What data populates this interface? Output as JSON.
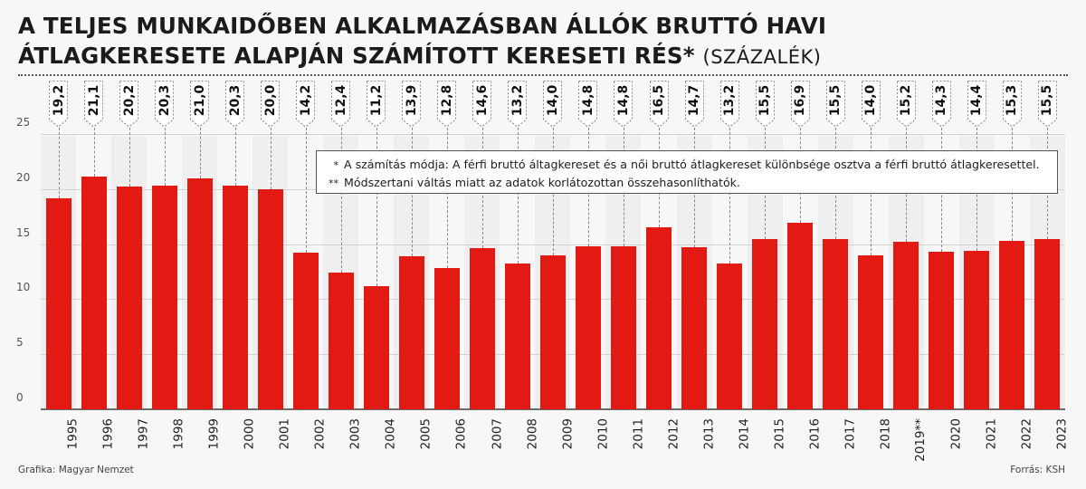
{
  "title": {
    "line1": "A TELJES MUNKAIDŐBEN ALKALMAZÁSBAN ÁLLÓK BRUTTÓ HAVI",
    "line2": "ÁTLAGKERESETE ALAPJÁN SZÁMÍTOTT KERESETI RÉS*",
    "unit": "(SZÁZALÉK)"
  },
  "notes": [
    {
      "marker": "*",
      "text": "A számítás módja: A férfi bruttó áltagkereset és a női bruttó átlagkereset különbsége osztva a férfi bruttó átlagkeresettel."
    },
    {
      "marker": "**",
      "text": "Módszertani váltás miatt az adatok korlátozottan összehasonlíthatók."
    }
  ],
  "footer": {
    "credit": "Grafika: Magyar Nemzet",
    "source": "Forrás: KSH"
  },
  "colors": {
    "bar": "#e31a14",
    "background": "#f7f7f7"
  },
  "chart_data": {
    "type": "bar",
    "title": "A teljes munkaidőben alkalmazásban állók bruttó havi átlagkeresete alapján számított kereseti rés* (százalék)",
    "xlabel": "",
    "ylabel": "",
    "ylim": [
      0,
      25
    ],
    "yticks": [
      0,
      5,
      10,
      15,
      20,
      25
    ],
    "grid": true,
    "legend": "none",
    "categories": [
      "1995",
      "1996",
      "1997",
      "1998",
      "1999",
      "2000",
      "2001",
      "2002",
      "2003",
      "2004",
      "2005",
      "2006",
      "2007",
      "2008",
      "2009",
      "2010",
      "2011",
      "2012",
      "2013",
      "2014",
      "2015",
      "2016",
      "2017",
      "2018",
      "2019**",
      "2020",
      "2021",
      "2022",
      "2023"
    ],
    "values": [
      19.2,
      21.1,
      20.2,
      20.3,
      21.0,
      20.3,
      20.0,
      14.2,
      12.4,
      11.2,
      13.9,
      12.8,
      14.6,
      13.2,
      14.0,
      14.8,
      14.8,
      16.5,
      14.7,
      13.2,
      15.5,
      16.9,
      15.5,
      14.0,
      15.2,
      14.3,
      14.4,
      15.3,
      15.5
    ],
    "value_labels": [
      "19,2",
      "21,1",
      "20,2",
      "20,3",
      "21,0",
      "20,3",
      "20,0",
      "14,2",
      "12,4",
      "11,2",
      "13,9",
      "12,8",
      "14,6",
      "13,2",
      "14,0",
      "14,8",
      "14,8",
      "16,5",
      "14,7",
      "13,2",
      "15,5",
      "16,9",
      "15,5",
      "14,0",
      "15,2",
      "14,3",
      "14,4",
      "15,3",
      "15,5"
    ],
    "annotations": [
      "* A számítás módja: A férfi bruttó áltagkereset és a női bruttó átlagkereset különbsége osztva a férfi bruttó átlagkeresettel.",
      "** Módszertani váltás miatt az adatok korlátozottan összehasonlíthatók."
    ]
  }
}
